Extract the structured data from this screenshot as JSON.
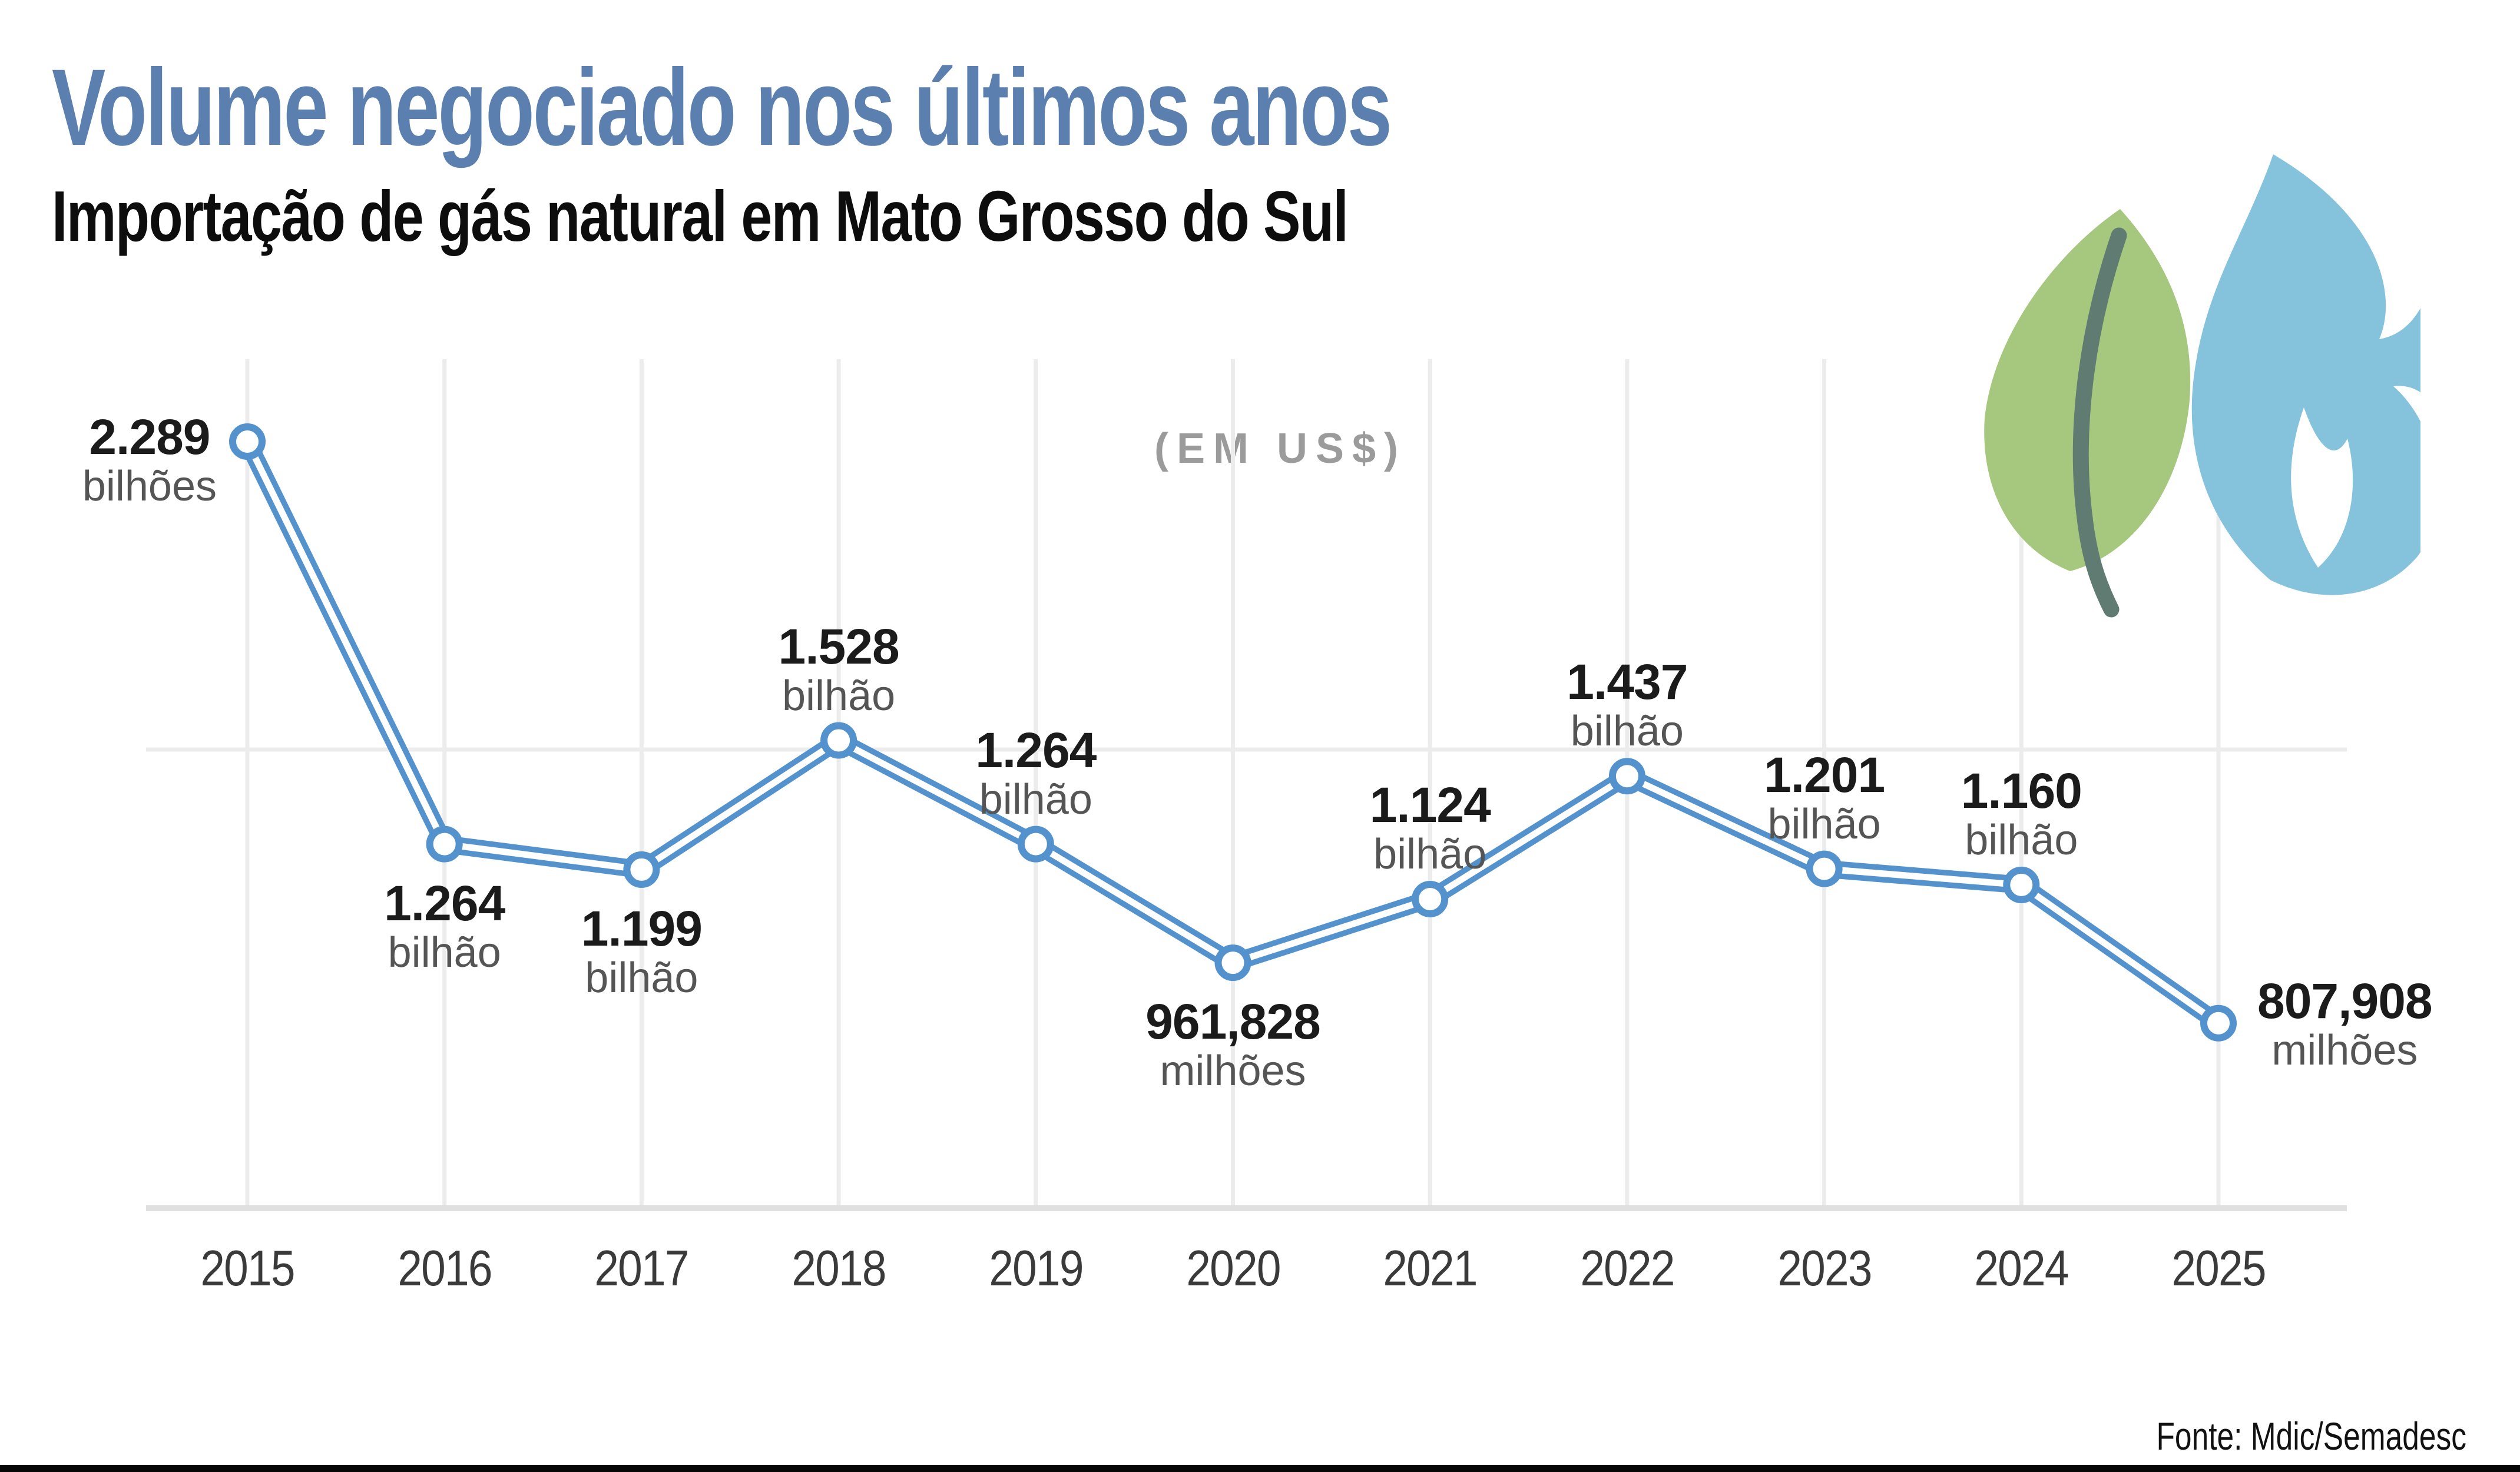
{
  "header": {
    "title": "Volume negociado nos últimos anos",
    "subtitle": "Importação de gás natural em Mato Grosso do Sul"
  },
  "chart_data": {
    "type": "line",
    "title": "Volume negociado nos últimos anos",
    "subtitle": "Importação de gás natural em Mato Grosso do Sul",
    "unit_note": "(EM US$)",
    "x": [
      2015,
      2016,
      2017,
      2018,
      2019,
      2020,
      2021,
      2022,
      2023,
      2024,
      2025
    ],
    "series": [
      {
        "name": "Importação de gás natural em US$",
        "values_billions": [
          2.289,
          1.264,
          1.199,
          1.528,
          1.264,
          0.961828,
          1.124,
          1.437,
          1.201,
          1.16,
          0.807908
        ]
      }
    ],
    "point_labels": [
      {
        "year": 2015,
        "value": "2.289",
        "unit": "bilhões",
        "placement": "left"
      },
      {
        "year": 2016,
        "value": "1.264",
        "unit": "bilhão",
        "placement": "below"
      },
      {
        "year": 2017,
        "value": "1.199",
        "unit": "bilhão",
        "placement": "below"
      },
      {
        "year": 2018,
        "value": "1.528",
        "unit": "bilhão",
        "placement": "above"
      },
      {
        "year": 2019,
        "value": "1.264",
        "unit": "bilhão",
        "placement": "above"
      },
      {
        "year": 2020,
        "value": "961,828",
        "unit": "milhões",
        "placement": "below"
      },
      {
        "year": 2021,
        "value": "1.124",
        "unit": "bilhão",
        "placement": "above"
      },
      {
        "year": 2022,
        "value": "1.437",
        "unit": "bilhão",
        "placement": "above"
      },
      {
        "year": 2023,
        "value": "1.201",
        "unit": "bilhão",
        "placement": "above"
      },
      {
        "year": 2024,
        "value": "1.160",
        "unit": "bilhão",
        "placement": "above"
      },
      {
        "year": 2025,
        "value": "807,908",
        "unit": "milhões",
        "placement": "right"
      }
    ],
    "legend": "none",
    "grid": "light vertical line per year, one horizontal reference line, light baseline",
    "line_color": "#5492cd",
    "marker_style": "white circle with blue outline",
    "grid_color": "#ececec",
    "baseline_color": "#e0e0e0"
  },
  "logo": {
    "name": "leaf-and-gas-flame",
    "leaf_color": "#a5c87e",
    "stem_color": "#5f7b72",
    "flame_color": "#85c3dd"
  },
  "footer": {
    "source": "Fonte: Mdic/Semadesc",
    "bar_color": "#060606"
  },
  "text_colors": {
    "title": "#5b7fae",
    "subtitle": "#0d0d0d",
    "unit_note": "#9b9b9b",
    "value": "#1b1b1b",
    "unit": "#555555",
    "year": "#3a3a3a"
  }
}
